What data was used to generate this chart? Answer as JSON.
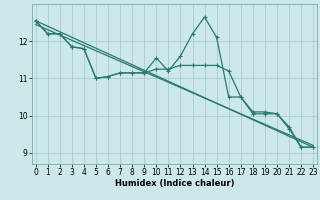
{
  "title": "",
  "xlabel": "Humidex (Indice chaleur)",
  "background_color": "#cce8e8",
  "grid_color": "#aacccc",
  "line_color": "#2a7a6a",
  "x": [
    0,
    1,
    2,
    3,
    4,
    5,
    6,
    7,
    8,
    9,
    10,
    11,
    12,
    13,
    14,
    15,
    16,
    17,
    18,
    19,
    20,
    21,
    22,
    23
  ],
  "line1": [
    12.55,
    12.2,
    12.2,
    11.85,
    11.8,
    11.0,
    11.05,
    11.15,
    11.15,
    11.15,
    11.55,
    11.2,
    11.6,
    12.2,
    12.65,
    12.1,
    10.5,
    10.5,
    10.1,
    10.1,
    10.05,
    9.65,
    9.15,
    9.15
  ],
  "line2": [
    12.55,
    12.2,
    12.2,
    11.85,
    11.8,
    11.0,
    11.05,
    11.15,
    11.15,
    11.15,
    11.25,
    11.25,
    11.35,
    11.35,
    11.35,
    11.35,
    11.2,
    10.5,
    10.05,
    10.05,
    10.05,
    9.7,
    9.15,
    9.15
  ],
  "trend1": [
    12.55,
    9.15
  ],
  "trend2": [
    12.45,
    9.2
  ],
  "trend_x": [
    0,
    23
  ],
  "ylim": [
    8.7,
    13.0
  ],
  "xlim": [
    -0.3,
    23.3
  ],
  "yticks": [
    9,
    10,
    11,
    12
  ],
  "xticks": [
    0,
    1,
    2,
    3,
    4,
    5,
    6,
    7,
    8,
    9,
    10,
    11,
    12,
    13,
    14,
    15,
    16,
    17,
    18,
    19,
    20,
    21,
    22,
    23
  ]
}
